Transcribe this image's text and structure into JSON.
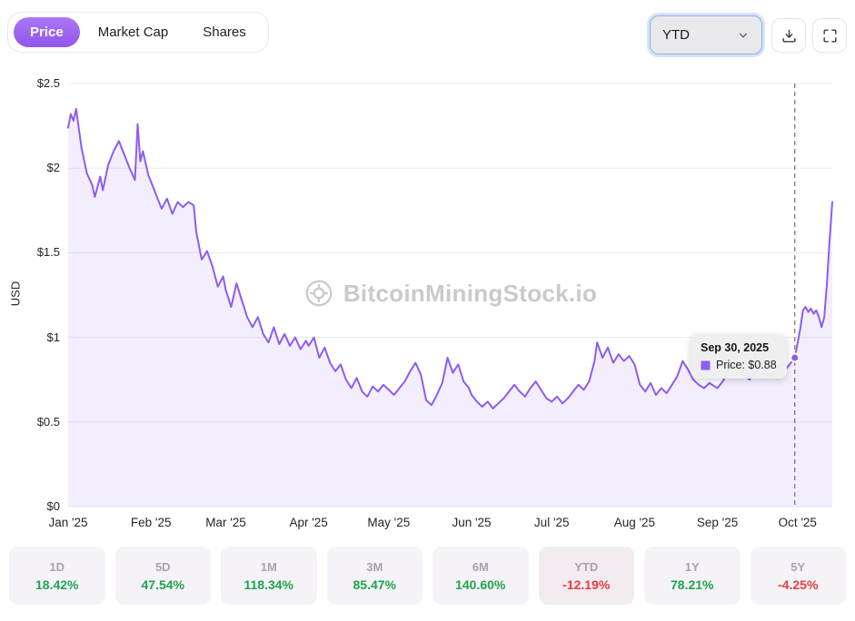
{
  "tabs": {
    "items": [
      {
        "label": "Price",
        "active": true
      },
      {
        "label": "Market Cap",
        "active": false
      },
      {
        "label": "Shares",
        "active": false
      }
    ]
  },
  "controls": {
    "range_selected": "YTD"
  },
  "watermark": {
    "text": "BitcoinMiningStock.io"
  },
  "tooltip": {
    "date": "Sep 30, 2025",
    "price": "Price: $0.88"
  },
  "chart_data": {
    "type": "area",
    "title": "",
    "ylabel": "USD",
    "ylim": [
      0,
      2.5
    ],
    "x_range_days": [
      0,
      286
    ],
    "grid": "horizontal",
    "legend": false,
    "y_ticks": [
      {
        "label": "$0",
        "value": 0
      },
      {
        "label": "$0.5",
        "value": 0.5
      },
      {
        "label": "$1",
        "value": 1
      },
      {
        "label": "$1.5",
        "value": 1.5
      },
      {
        "label": "$2",
        "value": 2
      },
      {
        "label": "$2.5",
        "value": 2.5
      }
    ],
    "x_ticks": [
      {
        "label": "Jan '25",
        "day": 0
      },
      {
        "label": "Feb '25",
        "day": 31
      },
      {
        "label": "Mar '25",
        "day": 59
      },
      {
        "label": "Apr '25",
        "day": 90
      },
      {
        "label": "May '25",
        "day": 120
      },
      {
        "label": "Jun '25",
        "day": 151
      },
      {
        "label": "Jul '25",
        "day": 181
      },
      {
        "label": "Aug '25",
        "day": 212
      },
      {
        "label": "Sep '25",
        "day": 243
      },
      {
        "label": "Oct '25",
        "day": 273
      }
    ],
    "marker": {
      "day": 272,
      "price": 0.88,
      "date": "Sep 30, 2025"
    },
    "series": [
      {
        "name": "Price",
        "color": "#8d5cf0",
        "fill": "rgba(141,92,240,0.10)",
        "points": [
          [
            0,
            2.24
          ],
          [
            1,
            2.32
          ],
          [
            2,
            2.28
          ],
          [
            3,
            2.35
          ],
          [
            5,
            2.12
          ],
          [
            7,
            1.97
          ],
          [
            9,
            1.9
          ],
          [
            10,
            1.83
          ],
          [
            12,
            1.95
          ],
          [
            13,
            1.87
          ],
          [
            15,
            2.02
          ],
          [
            17,
            2.1
          ],
          [
            19,
            2.16
          ],
          [
            21,
            2.08
          ],
          [
            23,
            2.0
          ],
          [
            25,
            1.93
          ],
          [
            26,
            2.26
          ],
          [
            27,
            2.04
          ],
          [
            28,
            2.1
          ],
          [
            30,
            1.96
          ],
          [
            31,
            1.92
          ],
          [
            33,
            1.84
          ],
          [
            35,
            1.76
          ],
          [
            37,
            1.82
          ],
          [
            39,
            1.73
          ],
          [
            41,
            1.8
          ],
          [
            43,
            1.77
          ],
          [
            45,
            1.8
          ],
          [
            47,
            1.78
          ],
          [
            48,
            1.62
          ],
          [
            50,
            1.46
          ],
          [
            52,
            1.51
          ],
          [
            54,
            1.42
          ],
          [
            56,
            1.3
          ],
          [
            58,
            1.36
          ],
          [
            59,
            1.28
          ],
          [
            61,
            1.18
          ],
          [
            63,
            1.32
          ],
          [
            65,
            1.22
          ],
          [
            67,
            1.12
          ],
          [
            69,
            1.06
          ],
          [
            71,
            1.12
          ],
          [
            73,
            1.02
          ],
          [
            75,
            0.97
          ],
          [
            77,
            1.06
          ],
          [
            79,
            0.96
          ],
          [
            81,
            1.02
          ],
          [
            83,
            0.95
          ],
          [
            85,
            1.0
          ],
          [
            87,
            0.93
          ],
          [
            89,
            0.98
          ],
          [
            90,
            0.95
          ],
          [
            92,
            1.0
          ],
          [
            94,
            0.88
          ],
          [
            96,
            0.94
          ],
          [
            98,
            0.85
          ],
          [
            100,
            0.8
          ],
          [
            102,
            0.84
          ],
          [
            104,
            0.75
          ],
          [
            106,
            0.7
          ],
          [
            108,
            0.76
          ],
          [
            110,
            0.68
          ],
          [
            112,
            0.65
          ],
          [
            114,
            0.71
          ],
          [
            116,
            0.68
          ],
          [
            118,
            0.72
          ],
          [
            120,
            0.69
          ],
          [
            122,
            0.66
          ],
          [
            124,
            0.7
          ],
          [
            126,
            0.74
          ],
          [
            128,
            0.8
          ],
          [
            130,
            0.85
          ],
          [
            132,
            0.78
          ],
          [
            134,
            0.63
          ],
          [
            136,
            0.6
          ],
          [
            138,
            0.66
          ],
          [
            140,
            0.73
          ],
          [
            142,
            0.88
          ],
          [
            144,
            0.79
          ],
          [
            146,
            0.84
          ],
          [
            148,
            0.74
          ],
          [
            150,
            0.7
          ],
          [
            151,
            0.66
          ],
          [
            153,
            0.62
          ],
          [
            155,
            0.59
          ],
          [
            157,
            0.62
          ],
          [
            159,
            0.58
          ],
          [
            161,
            0.61
          ],
          [
            163,
            0.64
          ],
          [
            165,
            0.68
          ],
          [
            167,
            0.72
          ],
          [
            169,
            0.68
          ],
          [
            171,
            0.65
          ],
          [
            173,
            0.7
          ],
          [
            175,
            0.74
          ],
          [
            177,
            0.69
          ],
          [
            179,
            0.64
          ],
          [
            181,
            0.62
          ],
          [
            183,
            0.65
          ],
          [
            185,
            0.61
          ],
          [
            187,
            0.64
          ],
          [
            189,
            0.68
          ],
          [
            191,
            0.72
          ],
          [
            193,
            0.69
          ],
          [
            195,
            0.74
          ],
          [
            197,
            0.86
          ],
          [
            198,
            0.97
          ],
          [
            200,
            0.88
          ],
          [
            202,
            0.94
          ],
          [
            204,
            0.85
          ],
          [
            206,
            0.9
          ],
          [
            208,
            0.86
          ],
          [
            210,
            0.89
          ],
          [
            212,
            0.84
          ],
          [
            214,
            0.72
          ],
          [
            216,
            0.68
          ],
          [
            218,
            0.73
          ],
          [
            220,
            0.66
          ],
          [
            222,
            0.7
          ],
          [
            224,
            0.67
          ],
          [
            226,
            0.72
          ],
          [
            228,
            0.77
          ],
          [
            230,
            0.86
          ],
          [
            232,
            0.81
          ],
          [
            234,
            0.75
          ],
          [
            236,
            0.72
          ],
          [
            238,
            0.7
          ],
          [
            240,
            0.73
          ],
          [
            242,
            0.71
          ],
          [
            243,
            0.7
          ],
          [
            245,
            0.74
          ],
          [
            247,
            0.8
          ],
          [
            249,
            0.85
          ],
          [
            251,
            0.82
          ],
          [
            253,
            0.78
          ],
          [
            255,
            0.75
          ],
          [
            257,
            0.79
          ],
          [
            259,
            0.83
          ],
          [
            261,
            0.8
          ],
          [
            263,
            0.77
          ],
          [
            265,
            0.81
          ],
          [
            267,
            0.84
          ],
          [
            269,
            0.82
          ],
          [
            271,
            0.86
          ],
          [
            272,
            0.88
          ],
          [
            274,
            1.05
          ],
          [
            275,
            1.16
          ],
          [
            276,
            1.18
          ],
          [
            277,
            1.15
          ],
          [
            278,
            1.17
          ],
          [
            279,
            1.14
          ],
          [
            280,
            1.16
          ],
          [
            281,
            1.12
          ],
          [
            282,
            1.06
          ],
          [
            283,
            1.12
          ],
          [
            284,
            1.32
          ],
          [
            285,
            1.58
          ],
          [
            286,
            1.8
          ]
        ]
      }
    ]
  },
  "stats": {
    "items": [
      {
        "label": "1D",
        "value": "18.42%"
      },
      {
        "label": "5D",
        "value": "47.54%"
      },
      {
        "label": "1M",
        "value": "118.34%"
      },
      {
        "label": "3M",
        "value": "85.47%"
      },
      {
        "label": "6M",
        "value": "140.60%"
      },
      {
        "label": "YTD",
        "value": "-12.19%",
        "selected": true
      },
      {
        "label": "1Y",
        "value": "78.21%"
      },
      {
        "label": "5Y",
        "value": "-4.25%"
      }
    ]
  },
  "colors": {
    "accent": "#9b62f0",
    "line": "#8d5cf0",
    "positive": "#1fa34d",
    "negative": "#e24040"
  }
}
